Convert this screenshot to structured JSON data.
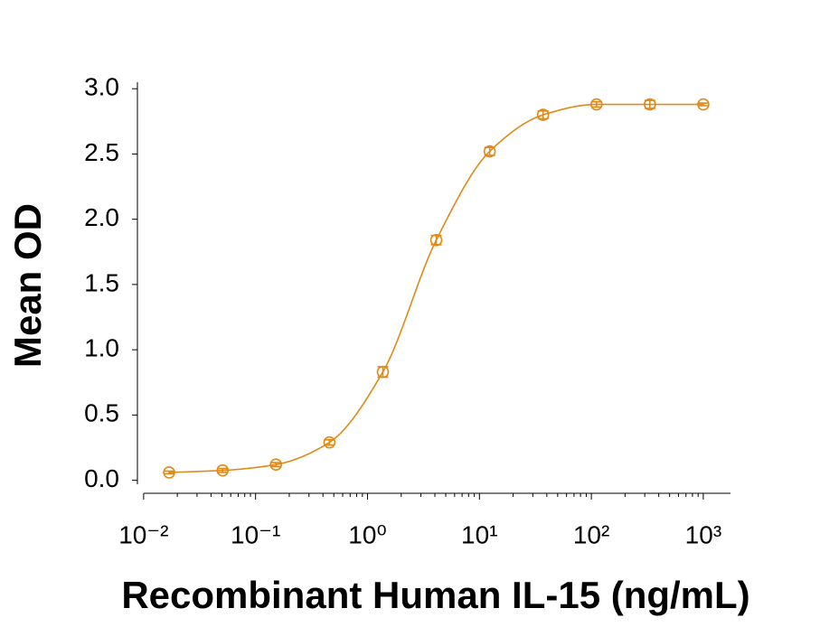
{
  "chart_data": {
    "type": "scatter",
    "xlabel": "Recombinant Human IL-15 (ng/mL)",
    "ylabel": "Mean OD",
    "x_scale": "log",
    "series": [
      {
        "color": "#e08a17",
        "x": [
          0.0169,
          0.0508,
          0.152,
          0.457,
          1.372,
          4.115,
          12.35,
          37.04,
          111.1,
          333.3,
          1000
        ],
        "values": [
          0.06,
          0.075,
          0.12,
          0.29,
          0.83,
          1.84,
          2.52,
          2.8,
          2.88,
          2.88,
          2.88
        ],
        "errors": [
          0.01,
          0.015,
          0.015,
          0.02,
          0.04,
          0.035,
          0.03,
          0.03,
          0.02,
          0.03,
          0.01
        ]
      }
    ],
    "xlim": [
      0.0088,
      1750
    ],
    "ylim": [
      -0.1,
      3.05
    ],
    "xticks": [
      {
        "value": 0.01,
        "label": "10⁻²"
      },
      {
        "value": 0.1,
        "label": "10⁻¹"
      },
      {
        "value": 1,
        "label": "10⁰"
      },
      {
        "value": 10,
        "label": "10¹"
      },
      {
        "value": 100,
        "label": "10²"
      },
      {
        "value": 1000,
        "label": "10³"
      }
    ],
    "yticks": [
      {
        "value": 0,
        "label": "0.0"
      },
      0.5,
      {
        "value": 1,
        "label": "1.0"
      },
      1.5,
      {
        "value": 2,
        "label": "2.0"
      },
      2.5,
      {
        "value": 3,
        "label": "3.0"
      }
    ],
    "grid": false
  }
}
